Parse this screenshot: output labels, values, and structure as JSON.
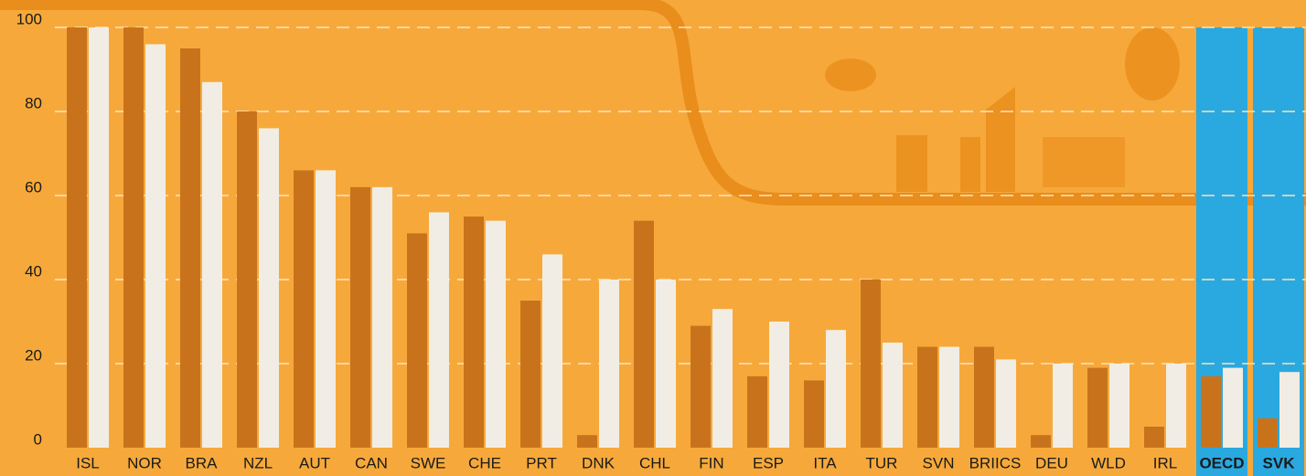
{
  "chart_data": {
    "type": "bar",
    "categories": [
      "ISL",
      "NOR",
      "BRA",
      "NZL",
      "AUT",
      "CAN",
      "SWE",
      "CHE",
      "PRT",
      "DNK",
      "CHL",
      "FIN",
      "ESP",
      "ITA",
      "TUR",
      "SVN",
      "BRIICS",
      "DEU",
      "WLD",
      "IRL",
      "OECD",
      "SVK"
    ],
    "series": [
      {
        "color": "#c8731c",
        "values": [
          100,
          100,
          95,
          80,
          66,
          62,
          51,
          55,
          35,
          3,
          54,
          29,
          17,
          16,
          40,
          24,
          24,
          3,
          19,
          5,
          17,
          7
        ]
      },
      {
        "color": "#f1ede4",
        "values": [
          100,
          96,
          87,
          76,
          66,
          62,
          56,
          54,
          46,
          40,
          40,
          33,
          30,
          28,
          25,
          24,
          21,
          20,
          20,
          20,
          19,
          18
        ]
      }
    ],
    "ylim": [
      0,
      100
    ],
    "yticks": [
      0,
      20,
      40,
      60,
      80,
      100
    ],
    "grid": true,
    "highlight_color": "#2aa9e0",
    "highlight_categories": [
      20,
      21
    ]
  }
}
